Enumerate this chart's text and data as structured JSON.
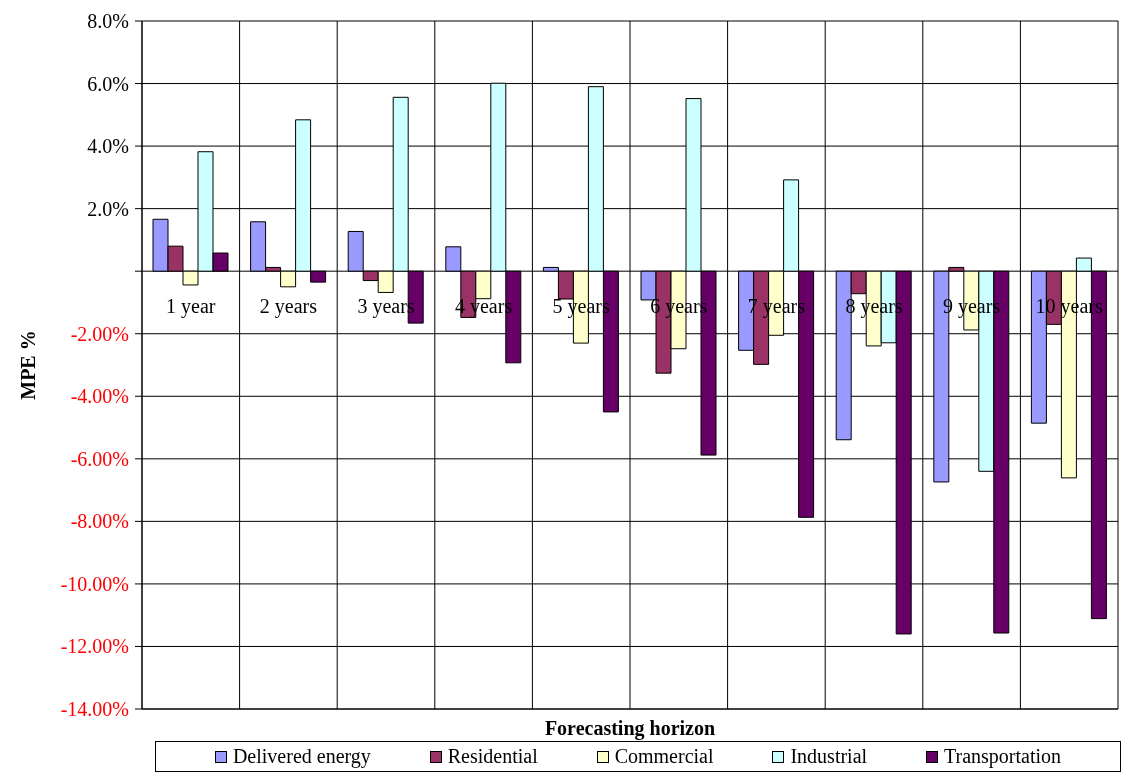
{
  "chart_data": {
    "type": "bar",
    "xlabel": "Forecasting horizon",
    "ylabel": "MPE %",
    "categories": [
      "1 year",
      "2 years",
      "3 years",
      "4 years",
      "5 years",
      "6 years",
      "7 years",
      "8 years",
      "9 years",
      "10 years"
    ],
    "series": [
      {
        "name": "Delivered energy",
        "color": "#9999ff",
        "values": [
          1.66,
          1.58,
          1.27,
          0.78,
          0.12,
          -0.92,
          -2.53,
          -5.39,
          -6.74,
          -4.86
        ]
      },
      {
        "name": "Residential",
        "color": "#993366",
        "values": [
          0.8,
          0.12,
          -0.3,
          -1.48,
          -0.89,
          -3.26,
          -2.98,
          -0.72,
          0.12,
          -1.7
        ]
      },
      {
        "name": "Commercial",
        "color": "#ffffcc",
        "values": [
          -0.44,
          -0.5,
          -0.68,
          -0.88,
          -2.3,
          -2.48,
          -2.05,
          -2.39,
          -1.88,
          -6.61
        ]
      },
      {
        "name": "Industrial",
        "color": "#ccffff",
        "values": [
          3.82,
          4.84,
          5.56,
          6.01,
          5.9,
          5.52,
          2.92,
          -2.29,
          -6.4,
          0.42
        ]
      },
      {
        "name": "Transportation",
        "color": "#660066",
        "values": [
          0.58,
          -0.35,
          -1.66,
          -2.93,
          -4.5,
          -5.88,
          -7.87,
          -11.6,
          -11.57,
          -11.11
        ]
      }
    ],
    "ylim": [
      -14,
      8
    ],
    "yticks": [
      {
        "value": 8,
        "label": "8.0%"
      },
      {
        "value": 6,
        "label": "6.0%"
      },
      {
        "value": 4,
        "label": "4.0%"
      },
      {
        "value": 2,
        "label": "2.0%"
      },
      {
        "value": 0,
        "label": null
      },
      {
        "value": -2,
        "label": "-2.00%"
      },
      {
        "value": -4,
        "label": "-4.00%"
      },
      {
        "value": -6,
        "label": "-6.00%"
      },
      {
        "value": -8,
        "label": "-8.00%"
      },
      {
        "value": -10,
        "label": "-10.00%"
      },
      {
        "value": -12,
        "label": "-12.00%"
      },
      {
        "value": -14,
        "label": "-14.00%"
      }
    ],
    "grid": true,
    "legend": "bottom"
  }
}
